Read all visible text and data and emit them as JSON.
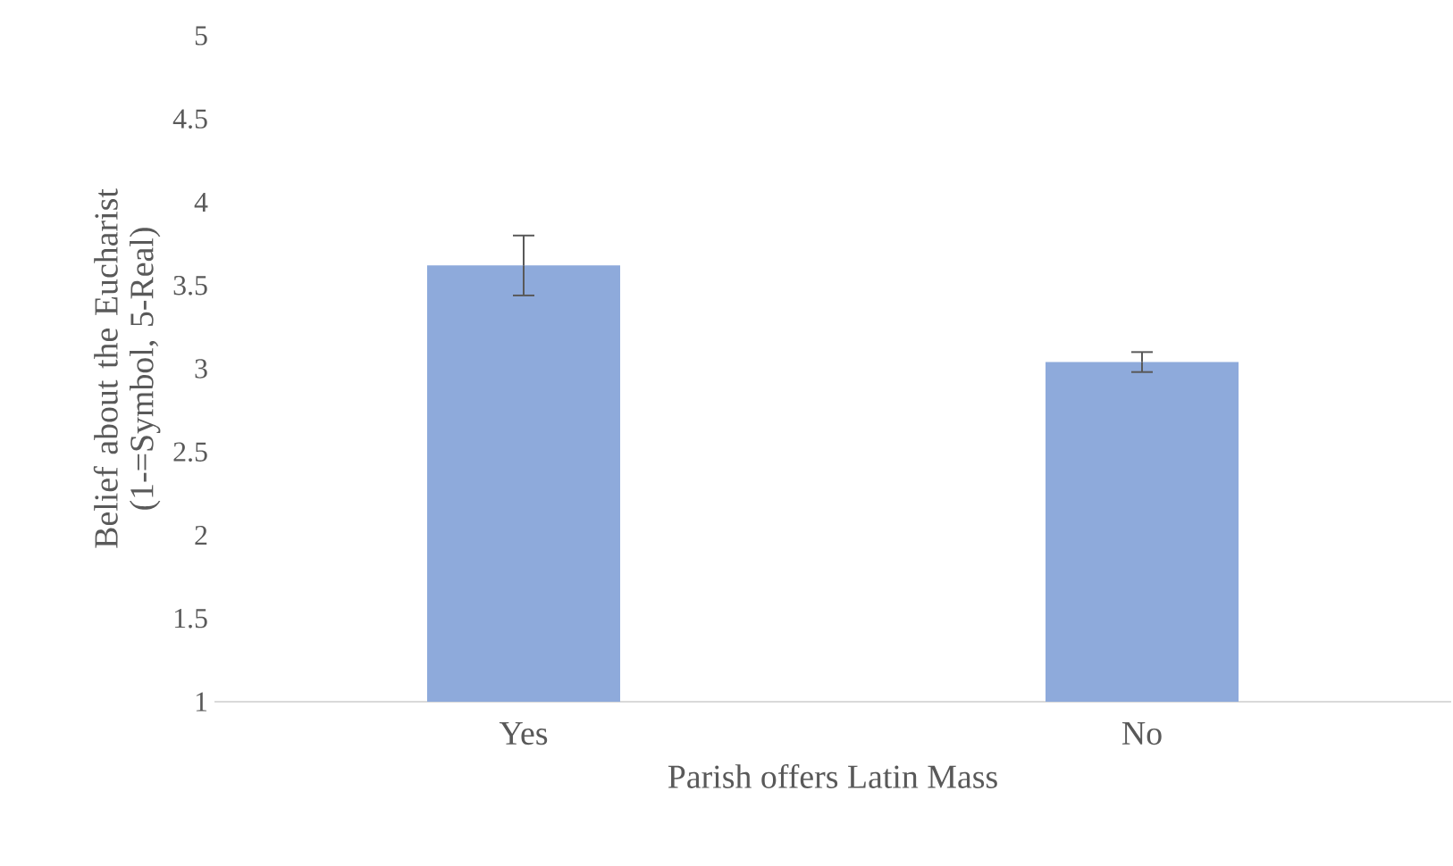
{
  "chart_data": {
    "type": "bar",
    "xlabel": "Parish offers Latin Mass",
    "ylabel": "Belief about the Eucharist (1-=Symbol, 5-Real)",
    "categories": [
      "Yes",
      "No"
    ],
    "values": [
      3.62,
      3.04
    ],
    "errors": [
      0.18,
      0.06
    ],
    "color": "#8eaadb",
    "ylim": [
      1,
      5
    ],
    "yticks": [
      1,
      1.5,
      2,
      2.5,
      3,
      3.5,
      4,
      4.5,
      5
    ]
  }
}
